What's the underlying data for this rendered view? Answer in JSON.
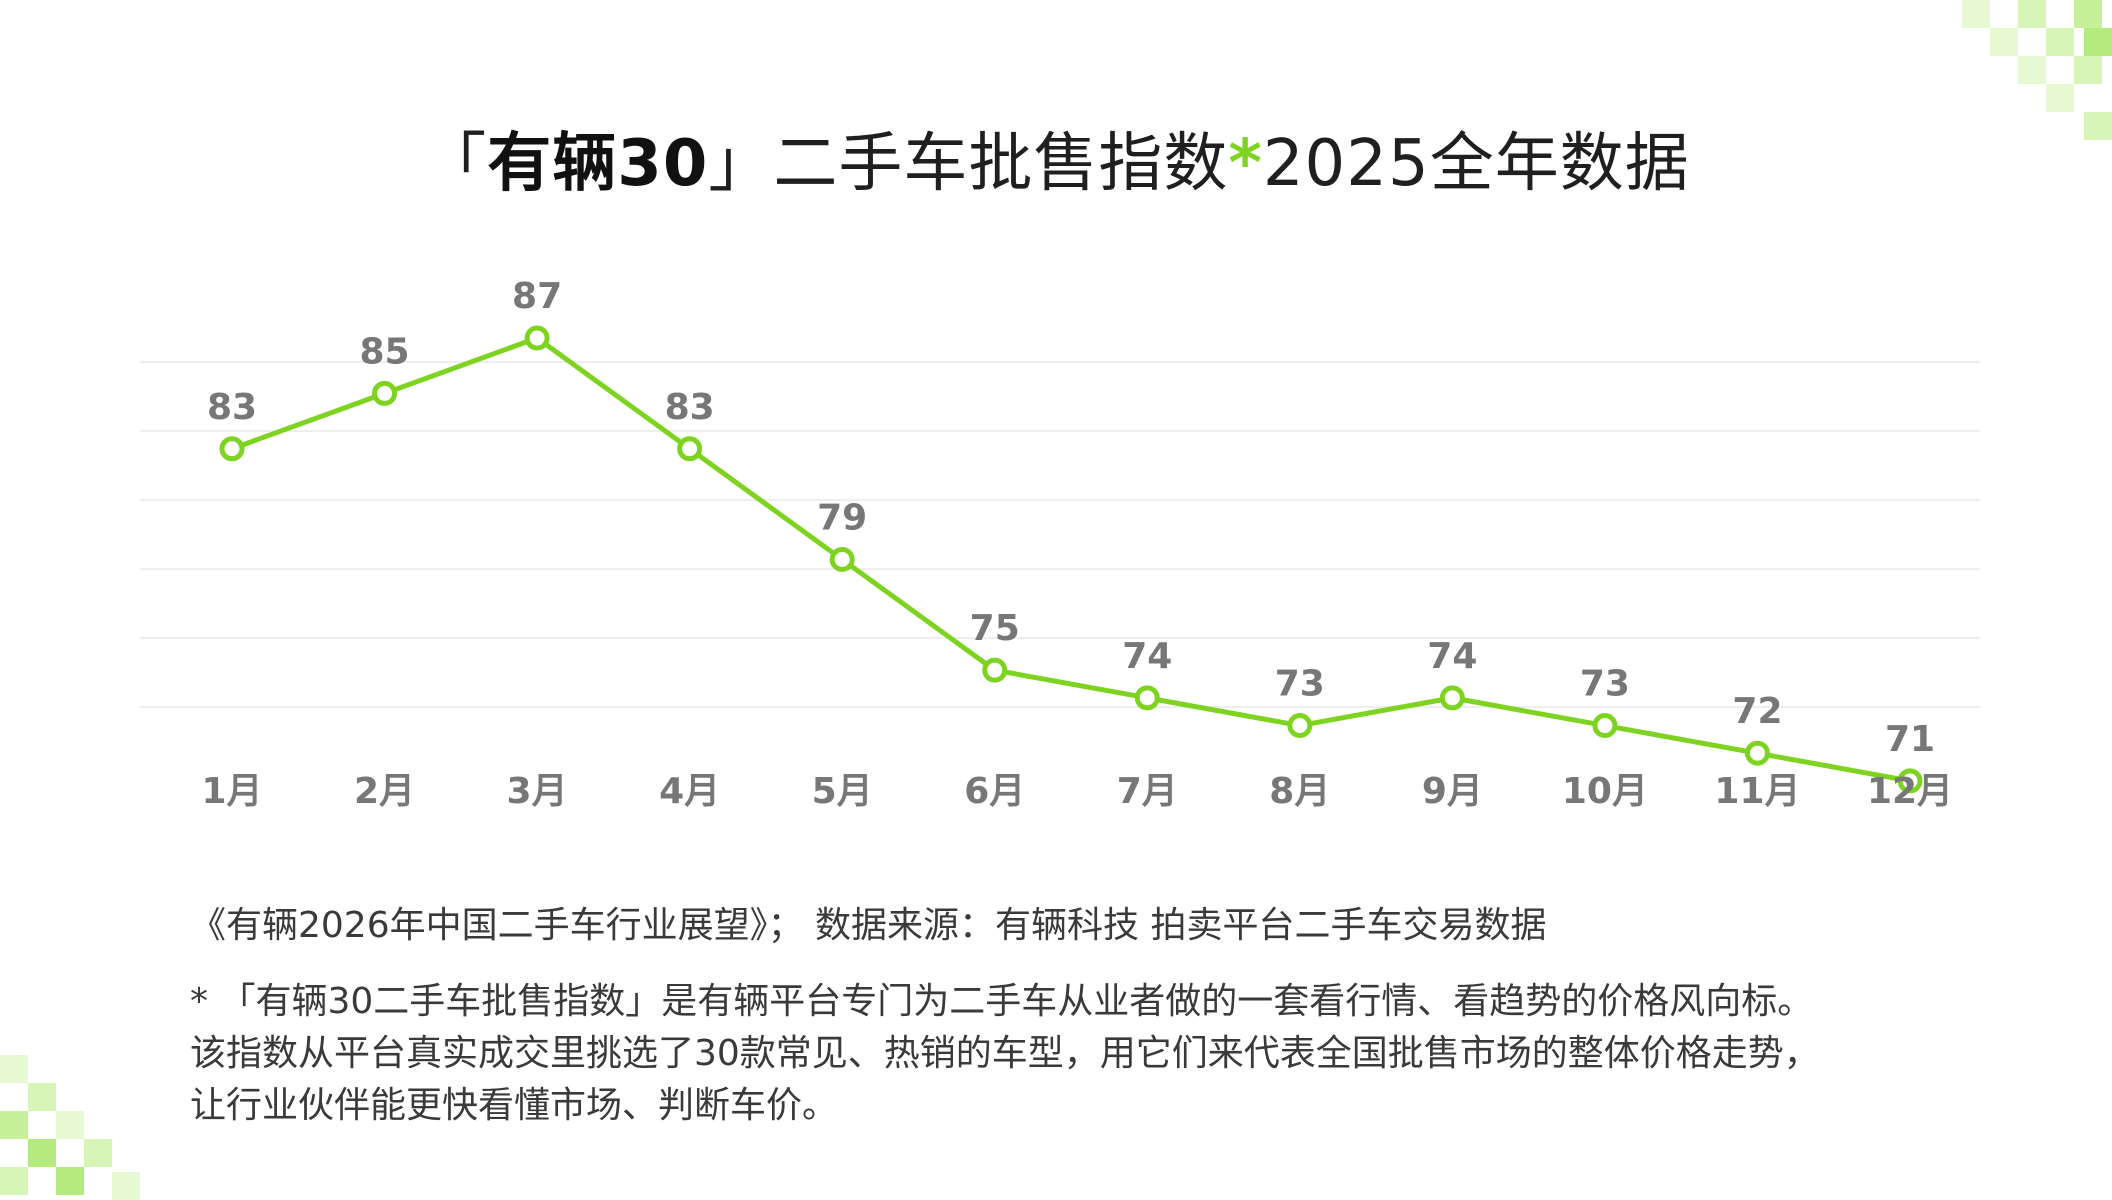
{
  "title": {
    "bracket_open": "「",
    "brand": "有辆30",
    "bracket_close": "」",
    "main": "二手车批售指数",
    "star": "*",
    "suffix": "2025全年数据"
  },
  "chart_data": {
    "type": "line",
    "categories": [
      "1月",
      "2月",
      "3月",
      "4月",
      "5月",
      "6月",
      "7月",
      "8月",
      "9月",
      "10月",
      "11月",
      "12月"
    ],
    "series": [
      {
        "values": [
          83,
          85,
          87,
          83,
          79,
          75,
          74,
          73,
          74,
          73,
          72,
          71
        ]
      }
    ],
    "line_color": "#7ed321",
    "label_color": "#777777",
    "grid": true,
    "ylim": [
      62,
      90
    ],
    "data_labels": true
  },
  "source": "《有辆2026年中国二手车行业展望》； 数据来源：有辆科技 拍卖平台二手车交易数据",
  "footnote": {
    "line1": "* 「有辆30二手车批售指数」是有辆平台专门为二手车从业者做的一套看行情、看趋势的价格风向标。",
    "line2": "该指数从平台真实成交里挑选了30款常见、热销的车型，用它们来代表全国批售市场的整体价格走势，",
    "line3": "让行业伙伴能更快看懂市场、判断车价。"
  },
  "decor": {
    "accent": "#7ed321",
    "light": "#d8f5b8",
    "mid": "#b5ea7e"
  }
}
